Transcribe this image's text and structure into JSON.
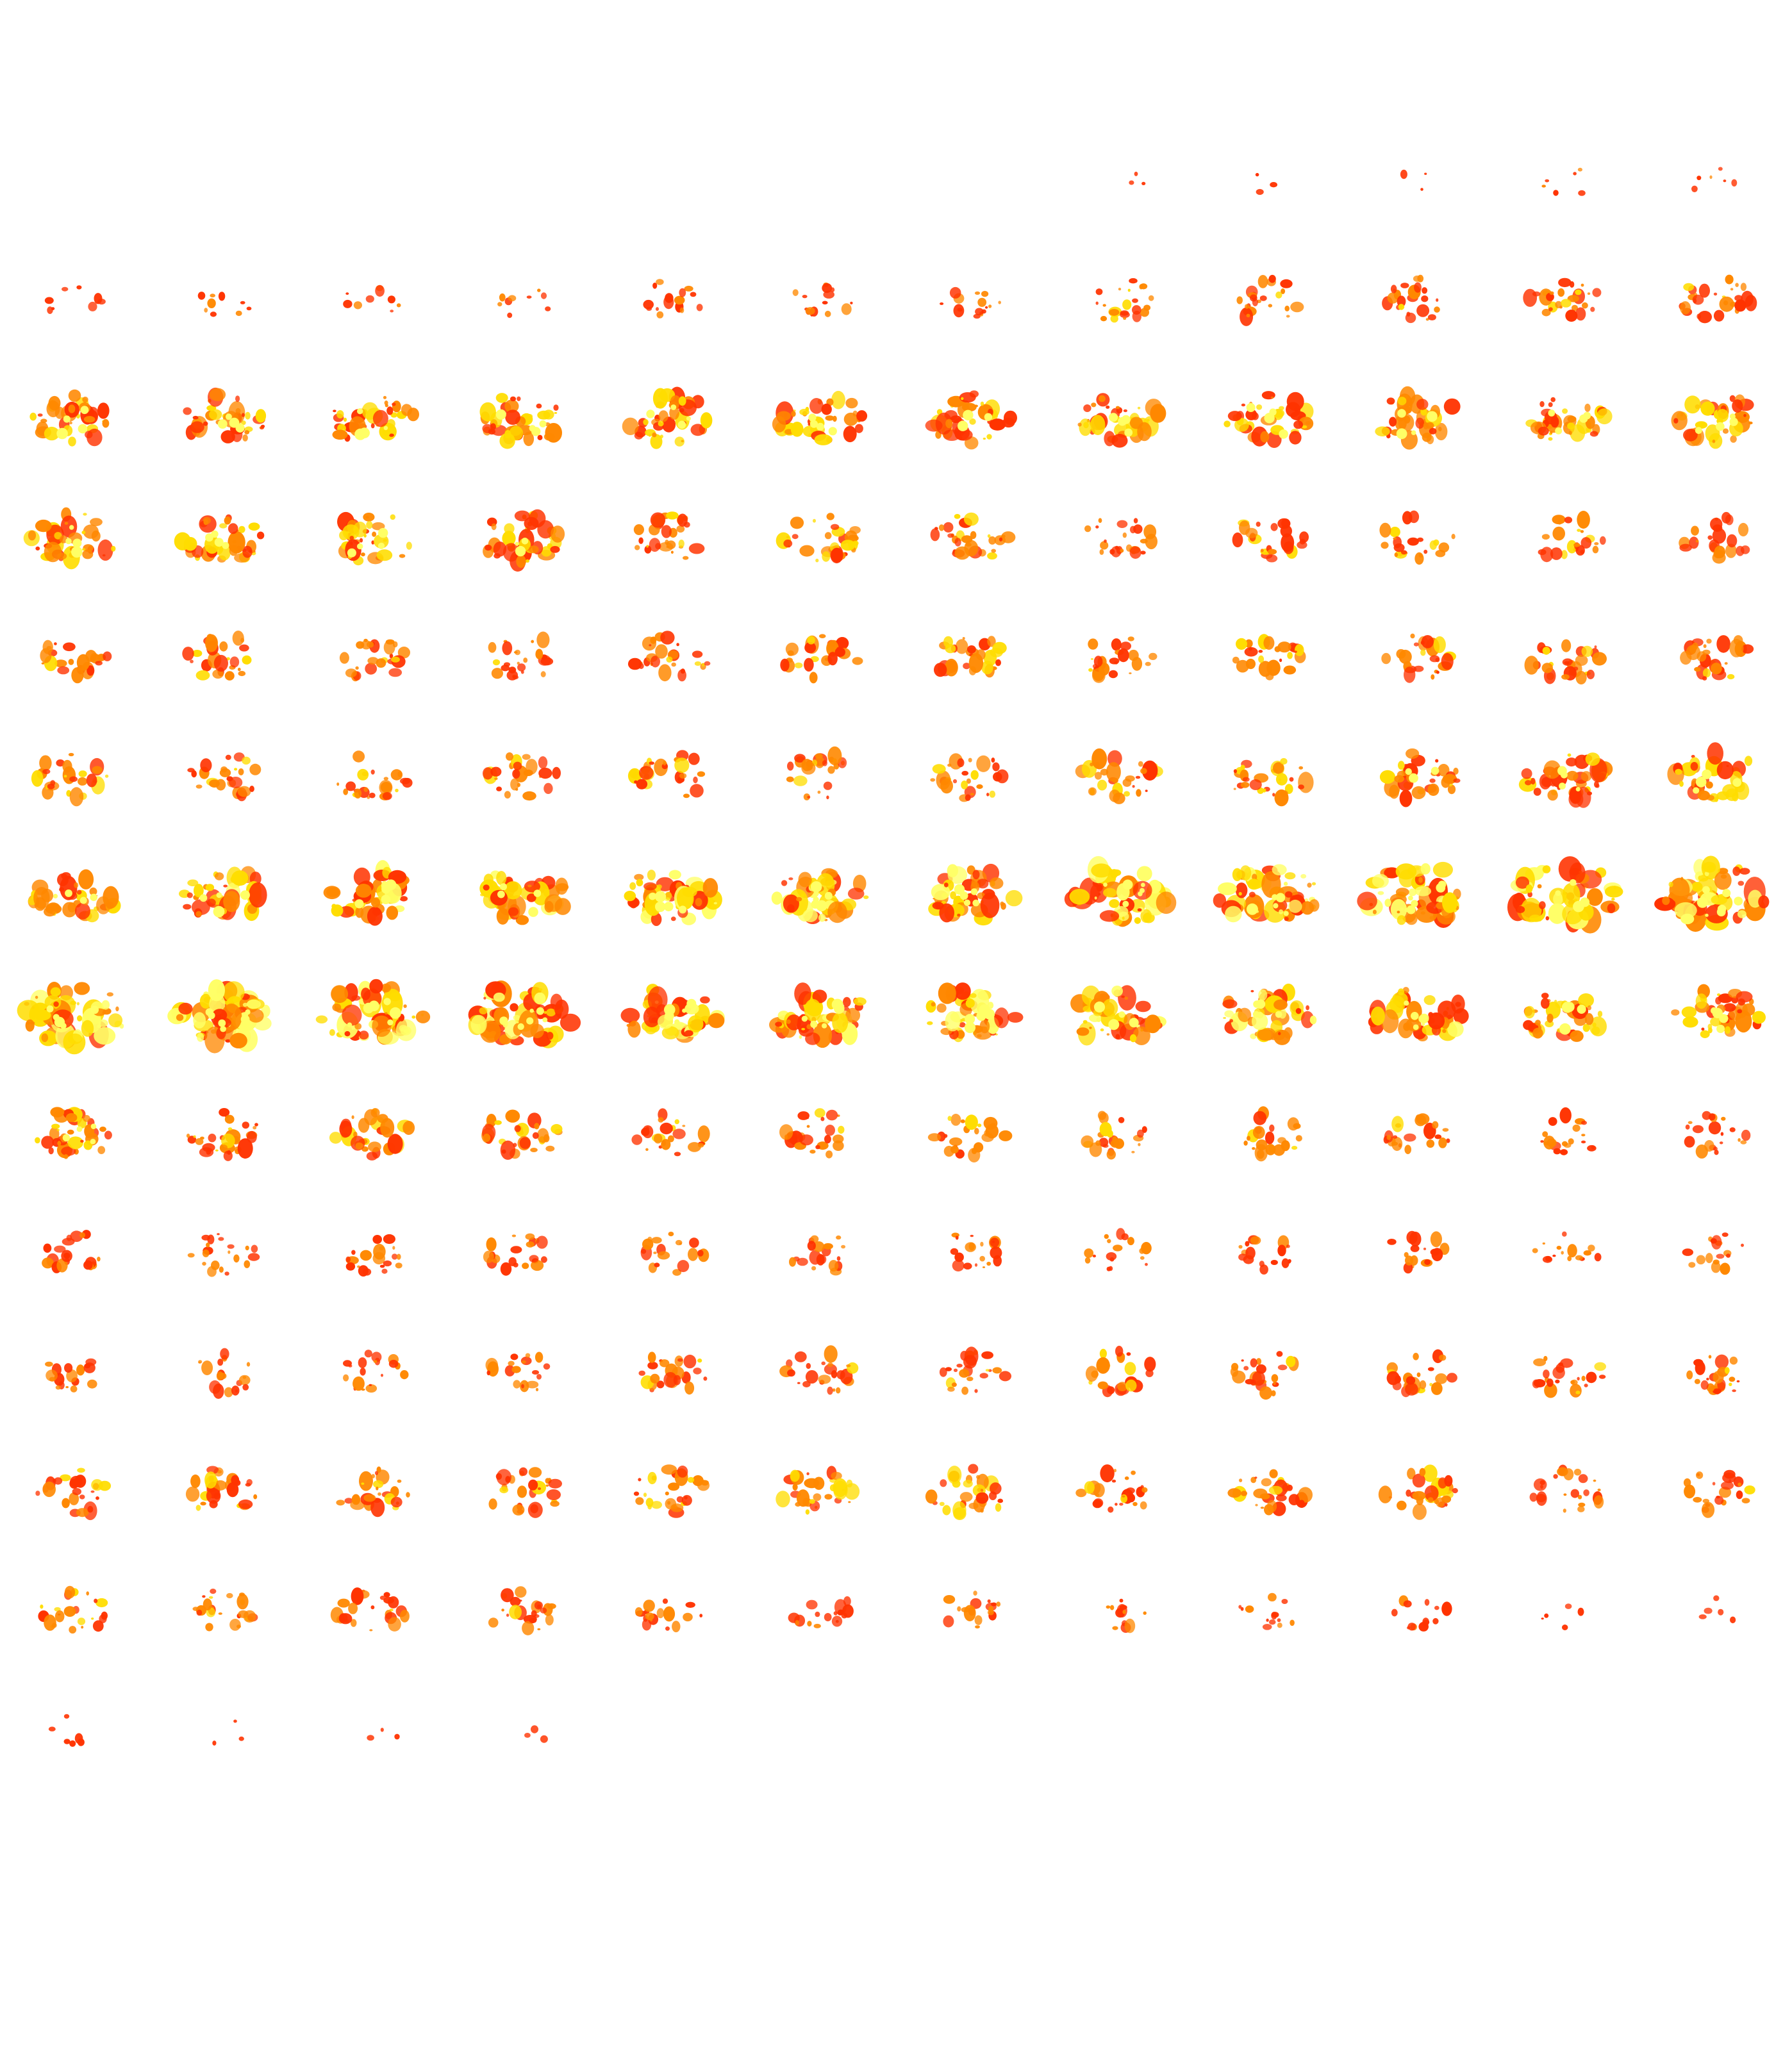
{
  "montage": {
    "view": "sagittal",
    "columns": 12,
    "rows": 14,
    "colors": {
      "background": "#ffffff",
      "low": "#ff3300",
      "mid": "#ff8800",
      "high": "#ffdd00",
      "peak": "#ffff66"
    },
    "slice_activation": [
      [
        0,
        0,
        0,
        0,
        0,
        0,
        0,
        0.02,
        0.02,
        0.02,
        0.05,
        0.05
      ],
      [
        0.08,
        0.1,
        0.1,
        0.1,
        0.18,
        0.18,
        0.18,
        0.28,
        0.3,
        0.3,
        0.35,
        0.35
      ],
      [
        0.45,
        0.48,
        0.48,
        0.48,
        0.5,
        0.5,
        0.5,
        0.48,
        0.48,
        0.46,
        0.45,
        0.45
      ],
      [
        0.5,
        0.5,
        0.5,
        0.48,
        0.4,
        0.4,
        0.38,
        0.32,
        0.32,
        0.3,
        0.3,
        0.3
      ],
      [
        0.3,
        0.32,
        0.32,
        0.32,
        0.34,
        0.34,
        0.35,
        0.32,
        0.32,
        0.32,
        0.35,
        0.36
      ],
      [
        0.35,
        0.32,
        0.32,
        0.32,
        0.36,
        0.36,
        0.36,
        0.4,
        0.4,
        0.42,
        0.48,
        0.5
      ],
      [
        0.5,
        0.55,
        0.55,
        0.55,
        0.6,
        0.6,
        0.6,
        0.7,
        0.72,
        0.75,
        0.78,
        0.78
      ],
      [
        0.75,
        0.72,
        0.72,
        0.7,
        0.6,
        0.6,
        0.58,
        0.6,
        0.6,
        0.58,
        0.5,
        0.5
      ],
      [
        0.45,
        0.4,
        0.4,
        0.38,
        0.32,
        0.32,
        0.32,
        0.3,
        0.28,
        0.28,
        0.25,
        0.25
      ],
      [
        0.25,
        0.26,
        0.26,
        0.26,
        0.24,
        0.24,
        0.24,
        0.22,
        0.22,
        0.22,
        0.2,
        0.2
      ],
      [
        0.22,
        0.24,
        0.24,
        0.24,
        0.3,
        0.3,
        0.3,
        0.3,
        0.3,
        0.3,
        0.3,
        0.3
      ],
      [
        0.32,
        0.36,
        0.36,
        0.36,
        0.4,
        0.4,
        0.4,
        0.35,
        0.35,
        0.35,
        0.3,
        0.3
      ],
      [
        0.3,
        0.3,
        0.3,
        0.3,
        0.22,
        0.22,
        0.22,
        0.15,
        0.15,
        0.15,
        0.04,
        0.04
      ],
      [
        0.05,
        0.01,
        0.01,
        0.01,
        0,
        0,
        0,
        0,
        0,
        0,
        0,
        0
      ]
    ]
  }
}
